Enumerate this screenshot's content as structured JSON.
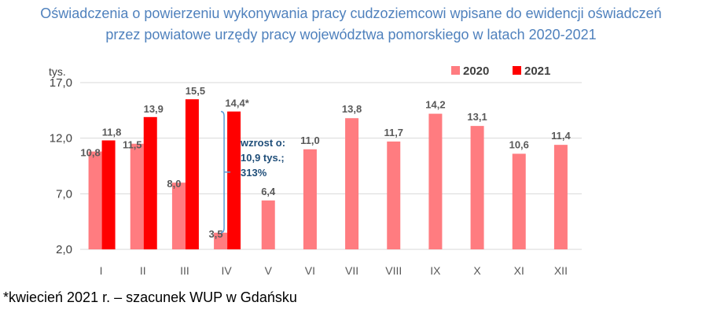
{
  "title_line1": "Oświadczenia o powierzeniu wykonywania pracy cudzoziemcowi wpisane do ewidencji oświadczeń",
  "title_line2": "przez powiatowe urzędy pracy województwa pomorskiego w latach 2020-2021",
  "footnote": "*kwiecień 2021 r. – szacunek WUP w Gdańsku",
  "chart_data": {
    "type": "bar",
    "y_unit": "tys.",
    "categories": [
      "I",
      "II",
      "III",
      "IV",
      "V",
      "VI",
      "VII",
      "VIII",
      "IX",
      "X",
      "XI",
      "XII"
    ],
    "yticks": [
      "2,0",
      "7,0",
      "12,0",
      "17,0"
    ],
    "ylim": [
      2,
      17
    ],
    "legend_position": "top-right",
    "series": [
      {
        "name": "2020",
        "color": "#ff7c80",
        "values": [
          10.8,
          11.5,
          8.0,
          3.5,
          6.4,
          11.0,
          13.8,
          11.7,
          14.2,
          13.1,
          10.6,
          11.4
        ],
        "labels": [
          "10,8",
          "11,5",
          "8,0",
          "3,5",
          "6,4",
          "11,0",
          "13,8",
          "11,7",
          "14,2",
          "13,1",
          "10,6",
          "11,4"
        ]
      },
      {
        "name": "2021",
        "color": "#ff0000",
        "values": [
          11.8,
          13.9,
          15.5,
          14.4,
          null,
          null,
          null,
          null,
          null,
          null,
          null,
          null
        ],
        "labels": [
          "11,8",
          "13,9",
          "15,5",
          "14,4*",
          "",
          "",
          "",
          "",
          "",
          "",
          "",
          ""
        ]
      }
    ],
    "annotation": {
      "lines": [
        "wzrost o:",
        "10,9 tys.;",
        "313%"
      ],
      "color": "#1f4e79",
      "bracket_color": "#5b9bd5"
    }
  }
}
